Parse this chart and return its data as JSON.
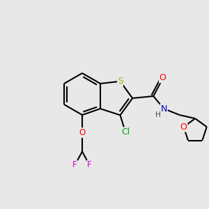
{
  "bg_color": "#e8e8e8",
  "bond_color": "#000000",
  "bond_width": 1.5,
  "atom_colors": {
    "F": "#cc00cc",
    "O": "#ff0000",
    "Cl": "#00aa00",
    "S": "#aaaa00",
    "N": "#0000cc",
    "C": "#000000",
    "H": "#404040"
  },
  "font_size": 8.5
}
